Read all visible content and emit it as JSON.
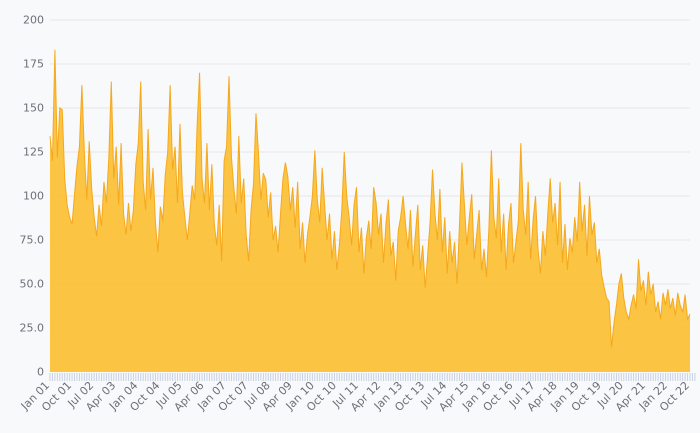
{
  "chart": {
    "background_color": "#f8f9fa",
    "gridline_color": "#e7e7e9",
    "axis_label_color": "#6b7077",
    "minor_tick_color": "#c7d0e5",
    "area_fill_color": "#fbbf35",
    "area_stroke_color": "#f5a81e"
  },
  "chart_data": {
    "type": "area",
    "title": "",
    "xlabel": "",
    "ylabel": "",
    "legend": false,
    "grid": true,
    "ylim": [
      0,
      200
    ],
    "y_tick_step": 25,
    "y_tick_labels": [
      "0",
      "25.0",
      "50.0",
      "75.0",
      "100",
      "125",
      "150",
      "175",
      "200"
    ],
    "x_interval": "monthly",
    "x_start": "Jan 2001",
    "x_end": "Oct 2022",
    "x_tick_every_months": 9,
    "x_tick_labels": [
      "Jan 01",
      "Oct 01",
      "Jul 02",
      "Apr 03",
      "Jan 04",
      "Oct 04",
      "Jul 05",
      "Apr 06",
      "Jan 07",
      "Oct 07",
      "Jul 08",
      "Apr 09",
      "Jan 10",
      "Oct 10",
      "Jul 11",
      "Apr 12",
      "Jan 13",
      "Oct 13",
      "Jul 14",
      "Apr 15",
      "Jan 16",
      "Oct 16",
      "Jul 17",
      "Apr 18",
      "Jan 19",
      "Oct 19",
      "Jul 20",
      "Apr 21",
      "Jan 22",
      "Oct 22"
    ],
    "values": [
      134,
      120,
      183,
      122,
      150,
      149,
      110,
      95,
      88,
      84,
      101,
      117,
      128,
      163,
      125,
      98,
      131,
      104,
      88,
      77,
      95,
      83,
      108,
      96,
      122,
      165,
      110,
      128,
      95,
      130,
      90,
      78,
      96,
      80,
      92,
      118,
      130,
      165,
      108,
      92,
      138,
      98,
      116,
      85,
      68,
      94,
      86,
      112,
      125,
      163,
      115,
      128,
      96,
      141,
      102,
      88,
      75,
      90,
      106,
      98,
      140,
      170,
      110,
      96,
      130,
      92,
      118,
      84,
      72,
      95,
      63,
      120,
      128,
      168,
      122,
      104,
      90,
      134,
      96,
      110,
      78,
      63,
      92,
      107,
      147,
      125,
      98,
      113,
      109,
      88,
      102,
      75,
      83,
      68,
      90,
      110,
      119,
      111,
      92,
      105,
      82,
      108,
      70,
      85,
      62,
      78,
      88,
      100,
      126,
      98,
      85,
      116,
      95,
      75,
      90,
      64,
      80,
      58,
      72,
      92,
      125,
      100,
      88,
      72,
      95,
      105,
      68,
      82,
      56,
      76,
      86,
      70,
      105,
      96,
      78,
      90,
      62,
      84,
      98,
      66,
      74,
      52,
      80,
      88,
      100,
      84,
      70,
      92,
      60,
      78,
      95,
      58,
      72,
      48,
      66,
      85,
      115,
      90,
      75,
      104,
      68,
      88,
      56,
      80,
      62,
      74,
      50,
      84,
      119,
      95,
      72,
      88,
      101,
      64,
      78,
      92,
      58,
      70,
      54,
      82,
      126,
      88,
      76,
      110,
      68,
      90,
      58,
      84,
      96,
      62,
      74,
      86,
      130,
      92,
      78,
      108,
      64,
      86,
      100,
      70,
      56,
      80,
      66,
      90,
      110,
      85,
      96,
      72,
      108,
      62,
      84,
      58,
      76,
      68,
      88,
      74,
      108,
      80,
      95,
      66,
      100,
      78,
      85,
      62,
      70,
      55,
      48,
      42,
      40,
      14,
      28,
      38,
      50,
      56,
      42,
      34,
      30,
      38,
      44,
      36,
      64,
      46,
      52,
      38,
      57,
      44,
      50,
      34,
      40,
      30,
      45,
      38,
      47,
      36,
      42,
      32,
      45,
      38,
      34,
      44,
      30,
      33
    ]
  }
}
